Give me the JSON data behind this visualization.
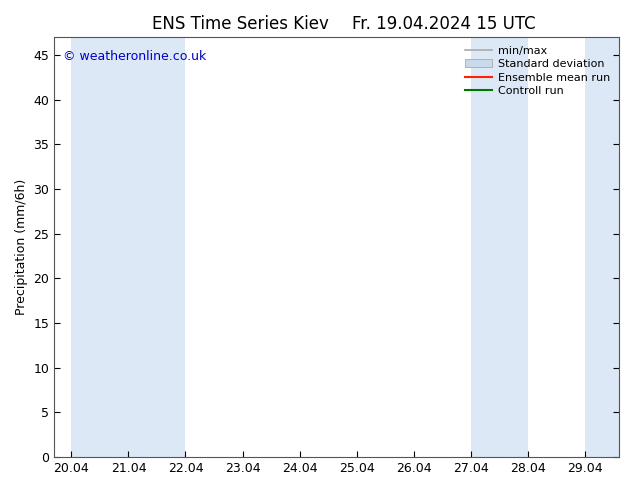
{
  "title": "ENS Time Series Kiev",
  "title2": "Fr. 19.04.2024 15 UTC",
  "ylabel": "Precipitation (mm/6h)",
  "watermark": "© weatheronline.co.uk",
  "background_color": "#ffffff",
  "plot_bg_color": "#ffffff",
  "ylim": [
    0,
    47
  ],
  "yticks": [
    0,
    5,
    10,
    15,
    20,
    25,
    30,
    35,
    40,
    45
  ],
  "xtick_labels": [
    "20.04",
    "21.04",
    "22.04",
    "23.04",
    "24.04",
    "25.04",
    "26.04",
    "27.04",
    "28.04",
    "29.04"
  ],
  "n_ticks": 10,
  "shaded_ranges": [
    [
      0,
      2
    ],
    [
      7,
      8
    ],
    [
      9,
      9.6
    ]
  ],
  "shade_color": "#dce8f5",
  "legend_labels": [
    "min/max",
    "Standard deviation",
    "Ensemble mean run",
    "Controll run"
  ],
  "title_fontsize": 12,
  "tick_fontsize": 9,
  "ylabel_fontsize": 9,
  "watermark_color": "#0000cc",
  "watermark_fontsize": 9,
  "legend_fontsize": 8
}
